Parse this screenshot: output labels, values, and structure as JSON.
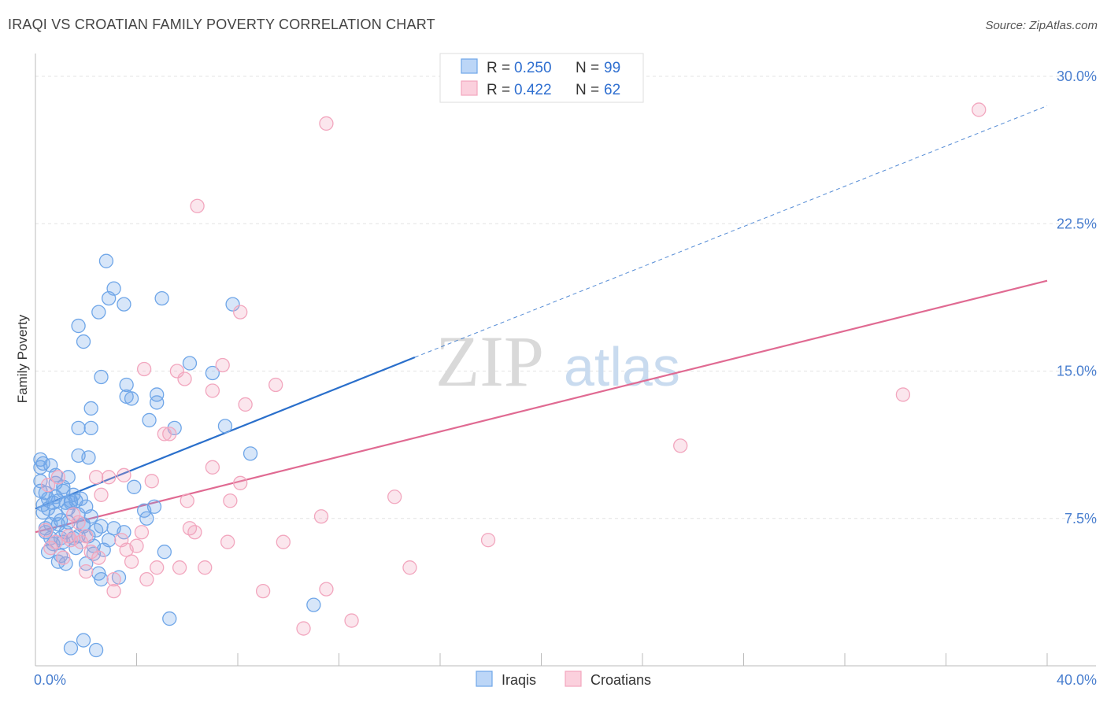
{
  "chart_data": {
    "type": "scatter",
    "title": "IRAQI VS CROATIAN FAMILY POVERTY CORRELATION CHART",
    "source": "Source: ZipAtlas.com",
    "ylabel": "Family Poverty",
    "xlim": [
      0,
      40
    ],
    "ylim": [
      0,
      30
    ],
    "x_tick_labels": [
      "0.0%",
      "40.0%"
    ],
    "y_ticks": [
      7.5,
      15,
      22.5,
      30
    ],
    "y_tick_labels": [
      "7.5%",
      "15.0%",
      "22.5%",
      "30.0%"
    ],
    "grid": true,
    "watermark": "ZIPatlas",
    "legend": {
      "position": "top-center",
      "rows": [
        {
          "r_label": "R =",
          "r_value": "0.250",
          "n_label": "N =",
          "n_value": "99"
        },
        {
          "r_label": "R =",
          "r_value": "0.422",
          "n_label": "N =",
          "n_value": "62"
        }
      ]
    },
    "bottom_legend": [
      "Iraqis",
      "Croatians"
    ],
    "colors": {
      "iraqis": "#6fa6e8",
      "iraqis_line": "#2a6fcb",
      "croatians": "#f2a6be",
      "croatians_line": "#e06a92",
      "axis_text": "#4a7fcf"
    },
    "series": [
      {
        "name": "Iraqis",
        "trend": {
          "x0": 0,
          "y0": 8.0,
          "x1": 15,
          "y1": 15.7,
          "dashed_to_x": 40,
          "dashed_to_y": 28.5
        },
        "points": [
          [
            0.2,
            10.5
          ],
          [
            0.3,
            10.3
          ],
          [
            0.2,
            9.4
          ],
          [
            0.4,
            8.8
          ],
          [
            0.5,
            8.5
          ],
          [
            0.6,
            10.2
          ],
          [
            0.7,
            8.3
          ],
          [
            0.8,
            8.6
          ],
          [
            0.8,
            9.7
          ],
          [
            0.9,
            8.4
          ],
          [
            1.0,
            7.4
          ],
          [
            1.1,
            9.1
          ],
          [
            1.2,
            8.3
          ],
          [
            1.3,
            8.0
          ],
          [
            1.4,
            8.4
          ],
          [
            1.5,
            8.7
          ],
          [
            1.6,
            8.4
          ],
          [
            1.7,
            7.7
          ],
          [
            1.8,
            8.5
          ],
          [
            2.0,
            8.1
          ],
          [
            2.2,
            7.6
          ],
          [
            0.3,
            7.8
          ],
          [
            0.4,
            7.0
          ],
          [
            0.6,
            7.2
          ],
          [
            0.7,
            6.2
          ],
          [
            0.9,
            7.2
          ],
          [
            1.0,
            6.5
          ],
          [
            1.1,
            6.3
          ],
          [
            1.3,
            7.3
          ],
          [
            1.5,
            6.5
          ],
          [
            1.7,
            6.6
          ],
          [
            1.9,
            7.1
          ],
          [
            2.1,
            6.6
          ],
          [
            2.3,
            6.1
          ],
          [
            2.6,
            7.1
          ],
          [
            0.5,
            5.8
          ],
          [
            0.9,
            5.3
          ],
          [
            1.0,
            5.6
          ],
          [
            1.2,
            5.2
          ],
          [
            2.0,
            5.2
          ],
          [
            2.3,
            5.7
          ],
          [
            2.5,
            4.7
          ],
          [
            2.6,
            4.4
          ],
          [
            2.7,
            5.9
          ],
          [
            3.3,
            4.5
          ],
          [
            3.5,
            6.8
          ],
          [
            3.9,
            9.1
          ],
          [
            4.3,
            7.9
          ],
          [
            4.4,
            7.5
          ],
          [
            4.7,
            8.1
          ],
          [
            1.7,
            12.1
          ],
          [
            1.7,
            10.7
          ],
          [
            2.1,
            10.6
          ],
          [
            2.2,
            12.1
          ],
          [
            2.2,
            13.1
          ],
          [
            1.7,
            17.3
          ],
          [
            1.9,
            16.5
          ],
          [
            2.5,
            18.0
          ],
          [
            2.6,
            14.7
          ],
          [
            2.8,
            20.6
          ],
          [
            2.9,
            18.7
          ],
          [
            3.1,
            19.2
          ],
          [
            3.5,
            18.4
          ],
          [
            3.6,
            14.3
          ],
          [
            3.6,
            13.7
          ],
          [
            3.8,
            13.6
          ],
          [
            4.5,
            12.5
          ],
          [
            4.8,
            13.8
          ],
          [
            4.8,
            13.4
          ],
          [
            5.0,
            18.7
          ],
          [
            5.5,
            12.1
          ],
          [
            6.1,
            15.4
          ],
          [
            7.0,
            14.9
          ],
          [
            7.5,
            12.2
          ],
          [
            7.8,
            18.4
          ],
          [
            8.5,
            10.8
          ],
          [
            11.0,
            3.1
          ],
          [
            5.3,
            2.4
          ],
          [
            1.4,
            0.9
          ],
          [
            1.9,
            1.3
          ],
          [
            2.4,
            0.8
          ],
          [
            0.2,
            8.9
          ],
          [
            0.3,
            8.2
          ],
          [
            0.5,
            8.0
          ],
          [
            0.8,
            7.7
          ],
          [
            1.1,
            8.9
          ],
          [
            1.4,
            8.3
          ],
          [
            1.9,
            7.2
          ],
          [
            2.4,
            6.9
          ],
          [
            0.4,
            6.8
          ],
          [
            0.6,
            6.5
          ],
          [
            1.2,
            6.8
          ],
          [
            1.6,
            6.0
          ],
          [
            2.9,
            6.4
          ],
          [
            0.2,
            10.1
          ],
          [
            0.8,
            9.3
          ],
          [
            1.3,
            9.6
          ],
          [
            5.1,
            5.8
          ],
          [
            3.1,
            7.0
          ]
        ]
      },
      {
        "name": "Croatians",
        "trend": {
          "x0": 0,
          "y0": 6.8,
          "x1": 40,
          "y1": 19.6
        },
        "points": [
          [
            0.4,
            6.9
          ],
          [
            0.6,
            6.0
          ],
          [
            0.8,
            6.3
          ],
          [
            0.9,
            9.6
          ],
          [
            1.1,
            5.5
          ],
          [
            1.3,
            6.6
          ],
          [
            1.5,
            7.7
          ],
          [
            1.7,
            7.3
          ],
          [
            1.8,
            6.3
          ],
          [
            2.0,
            6.6
          ],
          [
            2.2,
            5.8
          ],
          [
            2.4,
            9.6
          ],
          [
            2.5,
            5.5
          ],
          [
            2.6,
            8.7
          ],
          [
            2.9,
            9.6
          ],
          [
            3.1,
            4.4
          ],
          [
            3.1,
            3.8
          ],
          [
            3.4,
            6.4
          ],
          [
            3.5,
            9.7
          ],
          [
            3.6,
            5.9
          ],
          [
            3.8,
            5.3
          ],
          [
            4.0,
            6.1
          ],
          [
            4.2,
            6.8
          ],
          [
            4.4,
            4.4
          ],
          [
            4.6,
            9.4
          ],
          [
            4.8,
            5.0
          ],
          [
            5.1,
            11.8
          ],
          [
            5.3,
            11.8
          ],
          [
            5.6,
            15.0
          ],
          [
            5.7,
            5.0
          ],
          [
            5.9,
            14.6
          ],
          [
            6.0,
            8.4
          ],
          [
            6.1,
            7.0
          ],
          [
            6.3,
            6.8
          ],
          [
            6.7,
            5.0
          ],
          [
            7.0,
            10.1
          ],
          [
            7.0,
            14.0
          ],
          [
            7.4,
            15.3
          ],
          [
            7.6,
            6.3
          ],
          [
            7.7,
            8.4
          ],
          [
            8.1,
            9.3
          ],
          [
            8.1,
            18.0
          ],
          [
            8.3,
            13.3
          ],
          [
            9.0,
            3.8
          ],
          [
            9.5,
            14.3
          ],
          [
            9.8,
            6.3
          ],
          [
            10.6,
            1.9
          ],
          [
            11.3,
            7.6
          ],
          [
            11.5,
            3.9
          ],
          [
            11.5,
            27.6
          ],
          [
            12.5,
            2.3
          ],
          [
            14.2,
            8.6
          ],
          [
            14.8,
            5.0
          ],
          [
            17.9,
            6.4
          ],
          [
            25.5,
            11.2
          ],
          [
            34.3,
            13.8
          ],
          [
            37.3,
            28.3
          ],
          [
            6.4,
            23.4
          ],
          [
            4.3,
            15.1
          ],
          [
            2.0,
            4.8
          ],
          [
            1.4,
            6.4
          ],
          [
            0.5,
            9.2
          ]
        ]
      }
    ]
  }
}
